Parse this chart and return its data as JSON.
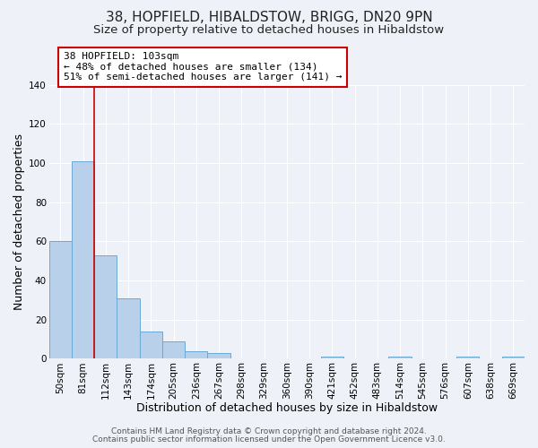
{
  "title": "38, HOPFIELD, HIBALDSTOW, BRIGG, DN20 9PN",
  "subtitle": "Size of property relative to detached houses in Hibaldstow",
  "xlabel": "Distribution of detached houses by size in Hibaldstow",
  "ylabel": "Number of detached properties",
  "bar_labels": [
    "50sqm",
    "81sqm",
    "112sqm",
    "143sqm",
    "174sqm",
    "205sqm",
    "236sqm",
    "267sqm",
    "298sqm",
    "329sqm",
    "360sqm",
    "390sqm",
    "421sqm",
    "452sqm",
    "483sqm",
    "514sqm",
    "545sqm",
    "576sqm",
    "607sqm",
    "638sqm",
    "669sqm"
  ],
  "bar_values": [
    60,
    101,
    53,
    31,
    14,
    9,
    4,
    3,
    0,
    0,
    0,
    0,
    1,
    0,
    0,
    1,
    0,
    0,
    1,
    0,
    1
  ],
  "bar_color": "#b8d0ea",
  "bar_edge_color": "#6aaad4",
  "ylim": [
    0,
    140
  ],
  "yticks": [
    0,
    20,
    40,
    60,
    80,
    100,
    120,
    140
  ],
  "annotation_title": "38 HOPFIELD: 103sqm",
  "annotation_line1": "← 48% of detached houses are smaller (134)",
  "annotation_line2": "51% of semi-detached houses are larger (141) →",
  "annotation_box_color": "#ffffff",
  "annotation_box_edge": "#cc0000",
  "footer1": "Contains HM Land Registry data © Crown copyright and database right 2024.",
  "footer2": "Contains public sector information licensed under the Open Government Licence v3.0.",
  "background_color": "#eef2f8",
  "grid_color": "#ffffff",
  "title_fontsize": 11,
  "subtitle_fontsize": 9.5,
  "axis_label_fontsize": 9,
  "tick_fontsize": 7.5,
  "footer_fontsize": 6.5
}
